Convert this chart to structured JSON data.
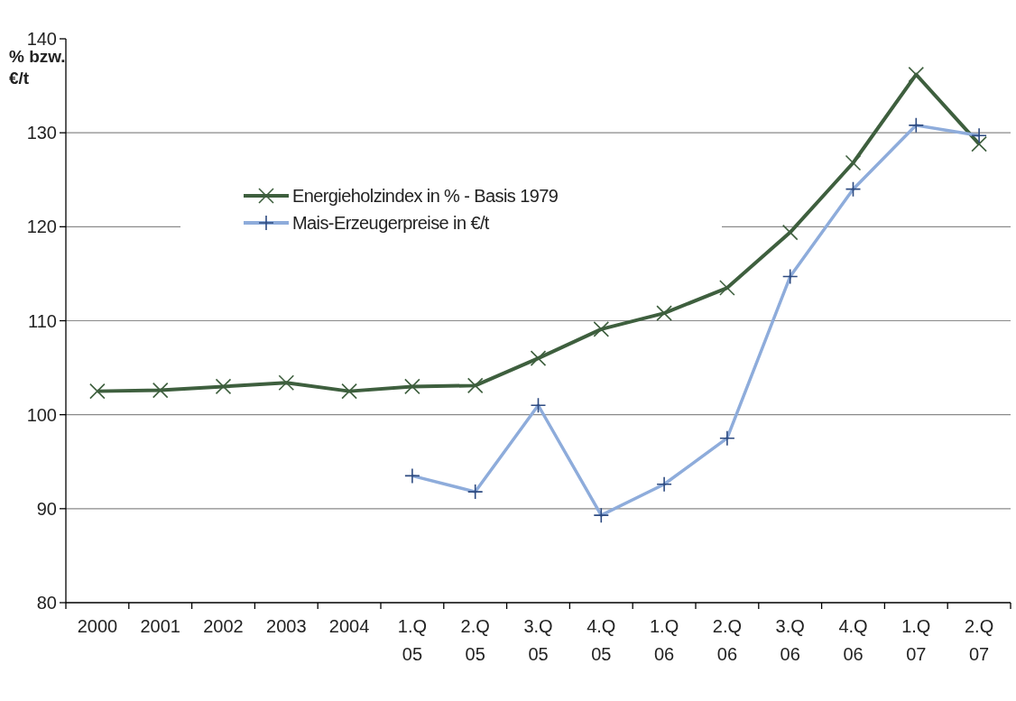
{
  "chart_data": {
    "type": "line",
    "ylabel": "% bzw. €/t",
    "categories": [
      "2000",
      "2001",
      "2002",
      "2003",
      "2004",
      "1.Q 05",
      "2.Q 05",
      "3.Q 05",
      "4.Q 05",
      "1.Q 06",
      "2.Q 06",
      "3.Q 06",
      "4.Q 06",
      "1.Q 07",
      "2.Q 07"
    ],
    "series": [
      {
        "name": "Energieholzindex in % - Basis 1979",
        "color": "#3e5f3e",
        "marker": "cross",
        "values": [
          102.5,
          102.6,
          103.0,
          103.4,
          102.5,
          103.0,
          103.1,
          106.0,
          109.1,
          110.8,
          113.5,
          119.4,
          126.8,
          136.2,
          128.8
        ]
      },
      {
        "name": "Mais-Erzeugerpreise in €/t",
        "color": "#8eacdb",
        "marker": "plus",
        "values": [
          null,
          null,
          null,
          null,
          null,
          93.5,
          91.8,
          101.0,
          89.3,
          92.6,
          97.5,
          114.7,
          124.0,
          130.8,
          129.7
        ]
      }
    ],
    "ylim": [
      80,
      140
    ],
    "yticks": [
      80,
      90,
      100,
      110,
      120,
      130,
      140
    ],
    "grid": "y",
    "legend": "top left"
  }
}
